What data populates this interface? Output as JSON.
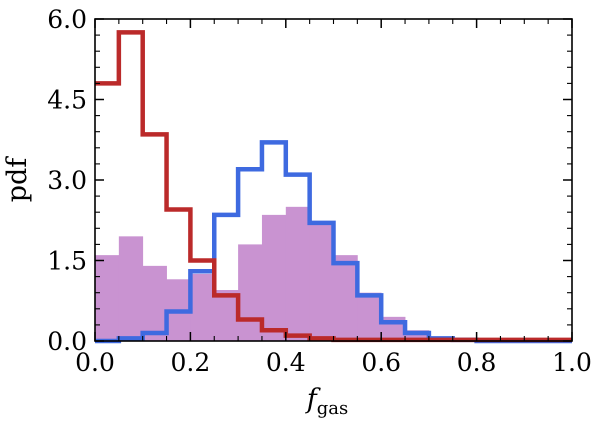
{
  "chart_data": {
    "type": "histogram",
    "title": "",
    "xlabel": "f",
    "xlabel_subscript": "gas",
    "ylabel": "pdf",
    "xlim": [
      0.0,
      1.0
    ],
    "ylim": [
      0.0,
      6.0
    ],
    "bin_edges": [
      0.0,
      0.05,
      0.1,
      0.15,
      0.2,
      0.25,
      0.3,
      0.35,
      0.4,
      0.45,
      0.5,
      0.55,
      0.6,
      0.65,
      0.7,
      0.75,
      0.8,
      0.85,
      0.9,
      0.95,
      1.0
    ],
    "xticks": [
      0.0,
      0.2,
      0.4,
      0.6,
      0.8,
      1.0
    ],
    "xtick_labels": [
      "0.0",
      "0.2",
      "0.4",
      "0.6",
      "0.8",
      "1.0"
    ],
    "yticks": [
      0.0,
      1.5,
      3.0,
      4.5,
      6.0
    ],
    "ytick_labels": [
      "0.0",
      "1.5",
      "3.0",
      "4.5",
      "6.0"
    ],
    "grid": false,
    "legend": "none",
    "series": [
      {
        "style": "filled",
        "color": "#c993d1",
        "values": [
          1.6,
          1.95,
          1.4,
          1.15,
          1.25,
          0.95,
          1.8,
          2.35,
          2.5,
          2.2,
          1.6,
          0.9,
          0.45,
          0.2,
          0.07,
          0.03,
          0.0,
          0.0,
          0.0,
          0.0
        ]
      },
      {
        "style": "step",
        "color": "#3e6ae0",
        "values": [
          0.0,
          0.05,
          0.15,
          0.55,
          1.3,
          2.35,
          3.2,
          3.7,
          3.1,
          2.2,
          1.45,
          0.85,
          0.35,
          0.15,
          0.05,
          0.02,
          0.0,
          0.0,
          0.0,
          0.0
        ]
      },
      {
        "style": "step",
        "color": "#bb2a2a",
        "values": [
          4.8,
          5.75,
          3.85,
          2.45,
          1.5,
          0.85,
          0.4,
          0.2,
          0.1,
          0.05,
          0.02,
          0.02,
          0.02,
          0.02,
          0.02,
          0.02,
          0.02,
          0.02,
          0.02,
          0.02
        ]
      }
    ]
  }
}
